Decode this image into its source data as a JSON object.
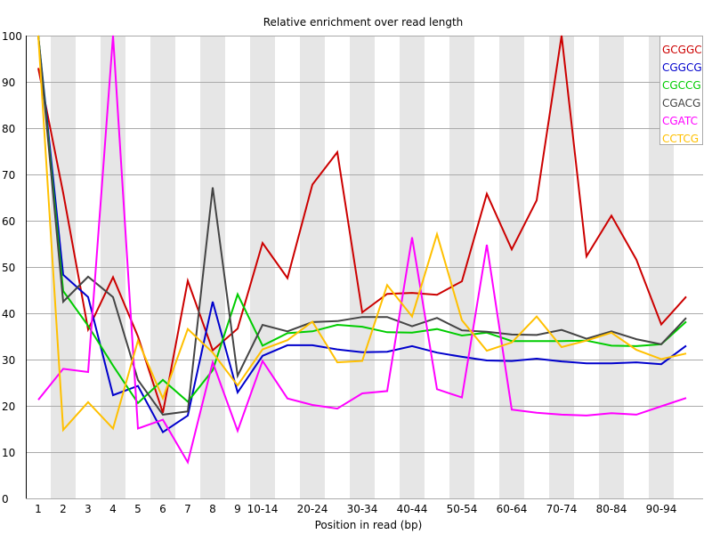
{
  "chart_data": {
    "type": "line",
    "title": "Relative enrichment over read length",
    "xlabel": "Position in read (bp)",
    "ylabel": "",
    "ylim": [
      0,
      100
    ],
    "yticks": [
      0,
      10,
      20,
      30,
      40,
      50,
      60,
      70,
      80,
      90,
      100
    ],
    "grid": true,
    "legend_position": "top-right",
    "categories": [
      "1",
      "2",
      "3",
      "4",
      "5",
      "6",
      "7",
      "8",
      "9",
      "10-14",
      "15-19",
      "20-24",
      "25-29",
      "30-34",
      "35-39",
      "40-44",
      "45-49",
      "50-54",
      "55-59",
      "60-64",
      "65-69",
      "70-74",
      "75-79",
      "80-84",
      "85-89",
      "90-94",
      "95-99"
    ],
    "xtick_labels_shown": [
      "1",
      "2",
      "3",
      "4",
      "5",
      "6",
      "7",
      "8",
      "9",
      "10-14",
      "20-24",
      "30-34",
      "40-44",
      "50-54",
      "60-64",
      "70-74",
      "80-84",
      "90-94"
    ],
    "series": [
      {
        "name": "GCGGC",
        "color": "#cc0000",
        "values": [
          93,
          66,
          36.5,
          47.8,
          35,
          18.5,
          47,
          32,
          36.7,
          55.2,
          47.6,
          67.8,
          74.8,
          40.2,
          44.2,
          44.4,
          44,
          46.9,
          65.8,
          53.8,
          64.4,
          100,
          52.3,
          61.1,
          51.6,
          37.6,
          43.6
        ]
      },
      {
        "name": "CGGCG",
        "color": "#0000cc",
        "values": [
          100,
          48.3,
          43.5,
          22.3,
          24.3,
          14.3,
          17.9,
          42.5,
          22.9,
          30.8,
          33.1,
          33.1,
          32.2,
          31.6,
          31.7,
          32.9,
          31.5,
          30.6,
          29.8,
          29.7,
          30.2,
          29.6,
          29.2,
          29.2,
          29.4,
          29,
          33
        ]
      },
      {
        "name": "CGCCG",
        "color": "#00cc00",
        "values": [
          100,
          44.8,
          37.3,
          28.7,
          20.6,
          25.6,
          20.9,
          27.7,
          44.1,
          33,
          35.7,
          36.1,
          37.5,
          37.1,
          35.9,
          35.8,
          36.6,
          35.2,
          35.8,
          34,
          34,
          34,
          34.1,
          33,
          32.9,
          33.3,
          38.2
        ]
      },
      {
        "name": "CGACG",
        "color": "#444444",
        "values": [
          100,
          42.5,
          47.9,
          43.5,
          25.6,
          18.1,
          18.8,
          67.2,
          26.5,
          37.5,
          36.1,
          38.1,
          38.3,
          39.2,
          39.2,
          37.2,
          39,
          36.3,
          36,
          35.4,
          35.3,
          36.4,
          34.5,
          36.1,
          34.4,
          33.3,
          39
        ]
      },
      {
        "name": "CGATC",
        "color": "#ff00ff",
        "values": [
          21.3,
          28,
          27.3,
          100,
          15.1,
          17,
          7.8,
          29.4,
          14.6,
          29.7,
          21.6,
          20.2,
          19.4,
          22.7,
          23.2,
          56.4,
          23.6,
          21.8,
          54.8,
          19.2,
          18.5,
          18.1,
          17.9,
          18.4,
          18.1,
          19.9,
          21.7
        ]
      },
      {
        "name": "CCTCG",
        "color": "#ffc000",
        "values": [
          100,
          14.8,
          20.8,
          15.1,
          34.1,
          21.6,
          36.6,
          31.5,
          24.4,
          32.2,
          34.2,
          38.2,
          29.4,
          29.7,
          46.1,
          39.3,
          57.1,
          38.5,
          31.9,
          33.7,
          39.3,
          32.7,
          34.1,
          35.8,
          32.1,
          30.1,
          31.3
        ]
      }
    ]
  },
  "colors": {
    "band": "#e6e6e6",
    "grid": "#aaaaaa",
    "axis": "#000000",
    "legend_border": "#aaaaaa"
  }
}
